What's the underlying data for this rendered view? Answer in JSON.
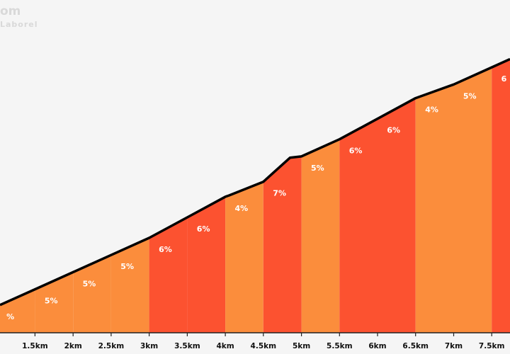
{
  "watermark": {
    "site": "om",
    "subtitle": "Laborel"
  },
  "chart_data": {
    "type": "area",
    "title": "",
    "xlabel": "",
    "ylabel": "",
    "x_unit": "km",
    "xlim": [
      1.04,
      7.74
    ],
    "grid": false,
    "legend": "none",
    "colors": {
      "low": "#fb8d3c",
      "high": "#fc5230",
      "line": "#000000",
      "background": "#f5f5f5",
      "axis": "#222222"
    },
    "x_ticks": [
      1.5,
      2,
      2.5,
      3,
      3.5,
      4,
      4.5,
      5,
      5.5,
      6,
      6.5,
      7,
      7.5
    ],
    "x_tick_labels": [
      "1.5km",
      "2km",
      "2.5km",
      "3km",
      "3.5km",
      "4km",
      "4.5km",
      "5km",
      "5.5km",
      "6km",
      "6.5km",
      "7km",
      "7.5km"
    ],
    "segments": [
      {
        "start": 1.0,
        "end": 1.5,
        "gradient_label": "%",
        "level": "low"
      },
      {
        "start": 1.5,
        "end": 2.0,
        "gradient_label": "5%",
        "level": "low"
      },
      {
        "start": 2.0,
        "end": 2.5,
        "gradient_label": "5%",
        "level": "low"
      },
      {
        "start": 2.5,
        "end": 3.0,
        "gradient_label": "5%",
        "level": "low"
      },
      {
        "start": 3.0,
        "end": 3.5,
        "gradient_label": "6%",
        "level": "high"
      },
      {
        "start": 3.5,
        "end": 4.0,
        "gradient_label": "6%",
        "level": "high"
      },
      {
        "start": 4.0,
        "end": 4.5,
        "gradient_label": "4%",
        "level": "low"
      },
      {
        "start": 4.5,
        "end": 5.0,
        "gradient_label": "7%",
        "level": "high"
      },
      {
        "start": 5.0,
        "end": 5.5,
        "gradient_label": "5%",
        "level": "low"
      },
      {
        "start": 5.5,
        "end": 6.0,
        "gradient_label": "6%",
        "level": "high"
      },
      {
        "start": 6.0,
        "end": 6.5,
        "gradient_label": "6%",
        "level": "high"
      },
      {
        "start": 6.5,
        "end": 7.0,
        "gradient_label": "4%",
        "level": "low"
      },
      {
        "start": 7.0,
        "end": 7.5,
        "gradient_label": "5%",
        "level": "low"
      },
      {
        "start": 7.5,
        "end": 8.0,
        "gradient_label": "6",
        "level": "high"
      }
    ],
    "profile": {
      "x": [
        1.04,
        1.5,
        2.0,
        2.5,
        3.0,
        3.5,
        4.0,
        4.05,
        4.5,
        4.85,
        5.0,
        5.5,
        6.0,
        6.5,
        7.0,
        7.5,
        7.74
      ],
      "y": [
        0.25,
        0.48,
        0.73,
        0.98,
        1.23,
        1.53,
        1.83,
        1.85,
        2.05,
        2.4,
        2.42,
        2.67,
        2.97,
        3.27,
        3.47,
        3.72,
        3.84
      ]
    }
  }
}
